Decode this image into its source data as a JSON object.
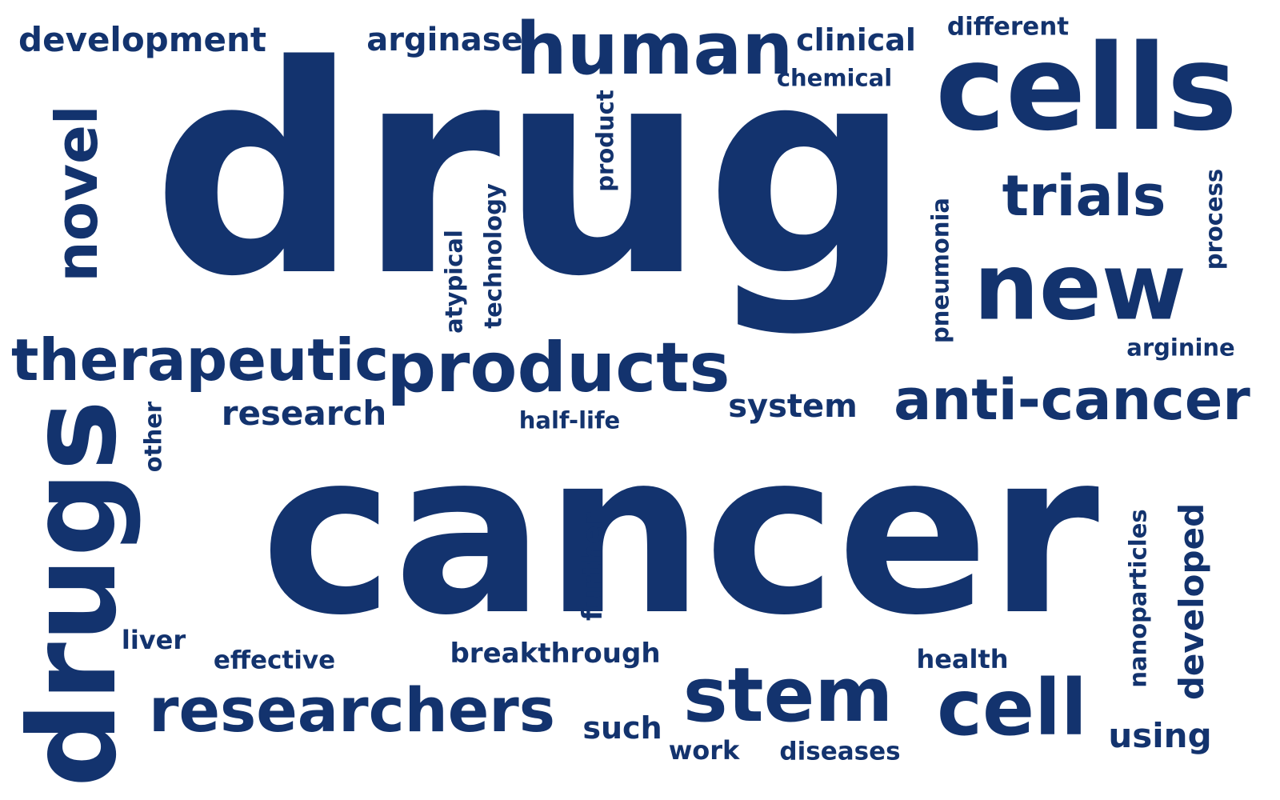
{
  "theme": {
    "text_color": "#13336e",
    "background": "#ffffff"
  },
  "words": [
    {
      "text": "drug"
    },
    {
      "text": "cancer"
    },
    {
      "text": "cells"
    },
    {
      "text": "drugs"
    },
    {
      "text": "human"
    },
    {
      "text": "products"
    },
    {
      "text": "therapeutic"
    },
    {
      "text": "new"
    },
    {
      "text": "anti-cancer"
    },
    {
      "text": "researchers"
    },
    {
      "text": "stem"
    },
    {
      "text": "cell"
    },
    {
      "text": "novel"
    },
    {
      "text": "trials"
    },
    {
      "text": "development"
    },
    {
      "text": "arginase"
    },
    {
      "text": "clinical"
    },
    {
      "text": "different"
    },
    {
      "text": "chemical"
    },
    {
      "text": "product"
    },
    {
      "text": "technology"
    },
    {
      "text": "atypical"
    },
    {
      "text": "pneumonia"
    },
    {
      "text": "process"
    },
    {
      "text": "arginine"
    },
    {
      "text": "research"
    },
    {
      "text": "system"
    },
    {
      "text": "half-life"
    },
    {
      "text": "other"
    },
    {
      "text": "further"
    },
    {
      "text": "liver"
    },
    {
      "text": "effective"
    },
    {
      "text": "breakthrough"
    },
    {
      "text": "health"
    },
    {
      "text": "nanoparticles"
    },
    {
      "text": "developed"
    },
    {
      "text": "such"
    },
    {
      "text": "work"
    },
    {
      "text": "diseases"
    },
    {
      "text": "using"
    }
  ]
}
